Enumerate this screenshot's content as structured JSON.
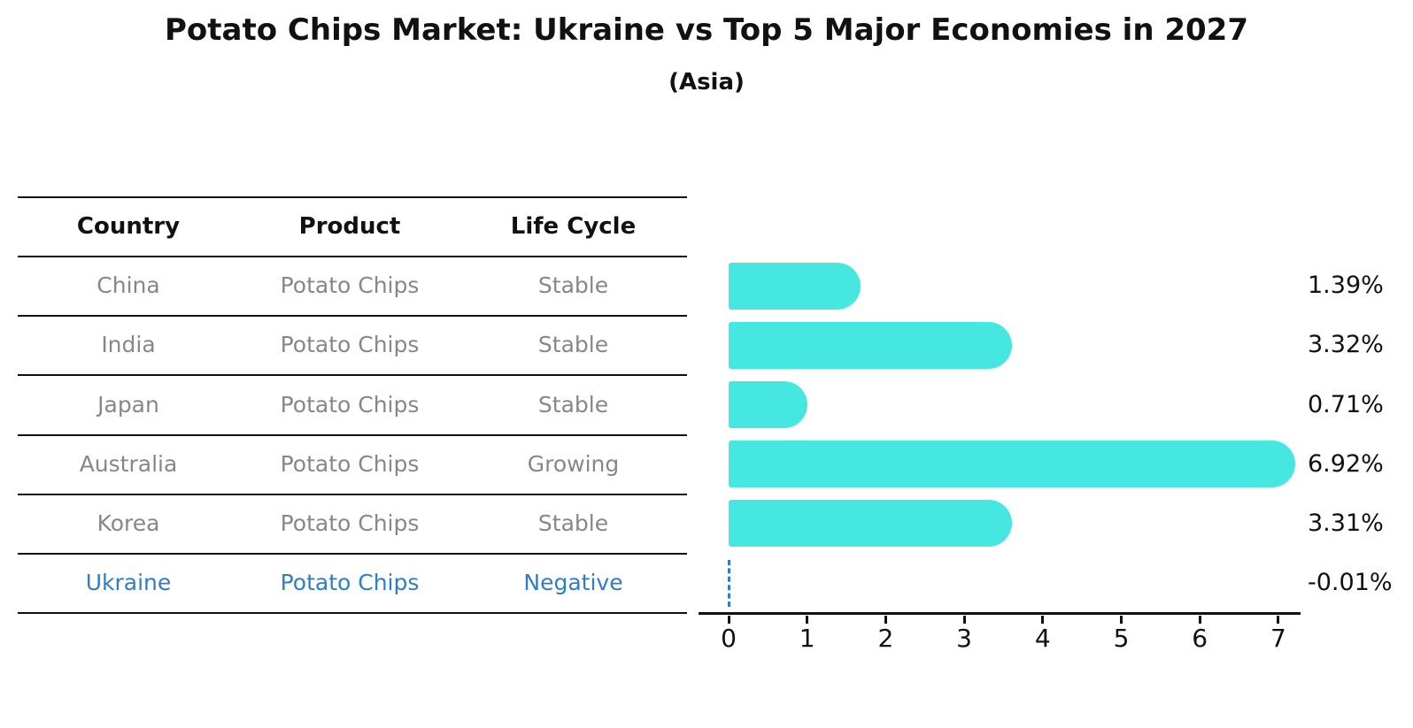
{
  "title": "Potato Chips Market: Ukraine vs Top 5 Major Economies in 2027",
  "subtitle": "(Asia)",
  "table": {
    "headers": {
      "country": "Country",
      "product": "Product",
      "life_cycle": "Life Cycle"
    },
    "rows": [
      {
        "country": "China",
        "product": "Potato Chips",
        "life_cycle": "Stable",
        "highlight": false
      },
      {
        "country": "India",
        "product": "Potato Chips",
        "life_cycle": "Stable",
        "highlight": false
      },
      {
        "country": "Japan",
        "product": "Potato Chips",
        "life_cycle": "Stable",
        "highlight": false
      },
      {
        "country": "Australia",
        "product": "Potato Chips",
        "life_cycle": "Growing",
        "highlight": false
      },
      {
        "country": "Korea",
        "product": "Potato Chips",
        "life_cycle": "Stable",
        "highlight": false
      },
      {
        "country": "Ukraine",
        "product": "Potato Chips",
        "life_cycle": "Negative",
        "highlight": true
      }
    ]
  },
  "chart_data": {
    "type": "bar",
    "orientation": "horizontal",
    "title": "Potato Chips Market: Ukraine vs Top 5 Major Economies in 2027",
    "subtitle": "(Asia)",
    "categories": [
      "China",
      "India",
      "Japan",
      "Australia",
      "Korea",
      "Ukraine"
    ],
    "values": [
      1.39,
      3.32,
      0.71,
      6.92,
      3.31,
      -0.01
    ],
    "value_labels": [
      "1.39%",
      "3.32%",
      "0.71%",
      "6.92%",
      "3.31%",
      "-0.01%"
    ],
    "xlabel": "",
    "ylabel": "",
    "xlim": [
      0,
      7.3
    ],
    "xticks": [
      0,
      1,
      2,
      3,
      4,
      5,
      6,
      7
    ],
    "grid": false,
    "legend_position": "none",
    "bar_color": "#47e7e1",
    "highlight_color": "#2e7dc6",
    "negative_marker": "dashed-line-at-zero"
  },
  "colors": {
    "bar": "#47e7e1",
    "highlight_blue": "#2e7dc6",
    "muted_text": "#878787",
    "text": "#111111"
  }
}
